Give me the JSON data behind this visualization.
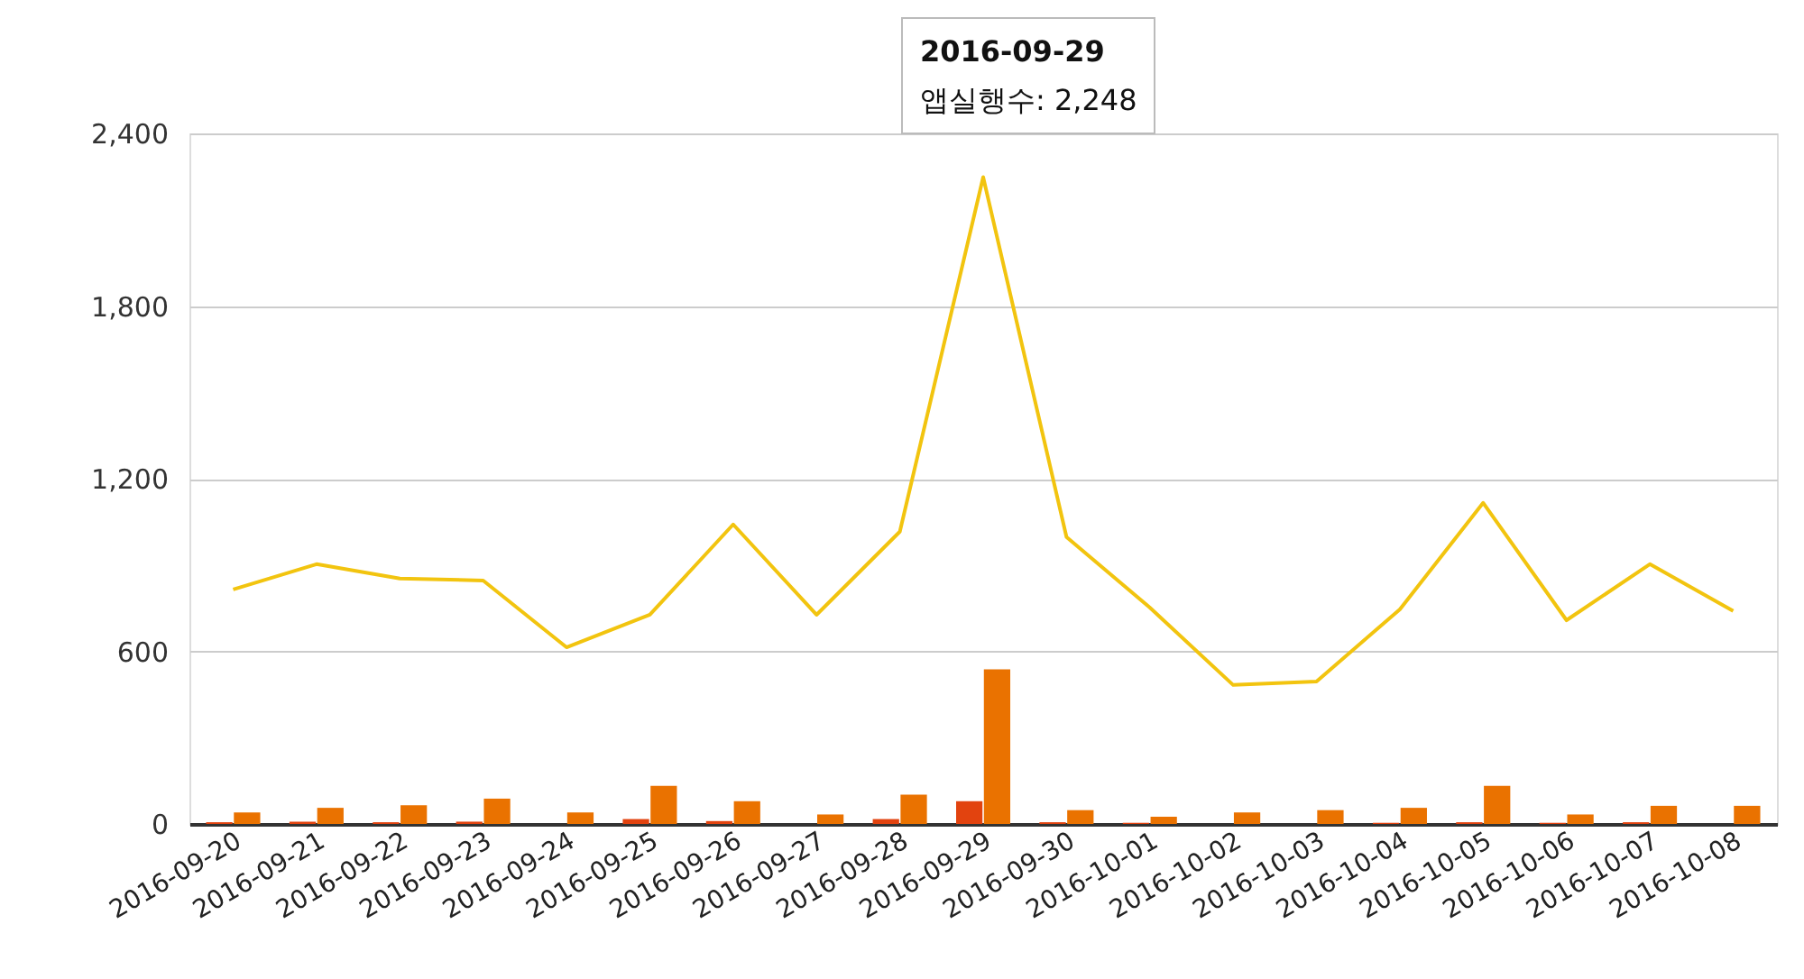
{
  "chart_data": {
    "type": "bar",
    "categories": [
      "2016-09-20",
      "2016-09-21",
      "2016-09-22",
      "2016-09-23",
      "2016-09-24",
      "2016-09-25",
      "2016-09-26",
      "2016-09-27",
      "2016-09-28",
      "2016-09-29",
      "2016-09-30",
      "2016-10-01",
      "2016-10-02",
      "2016-10-03",
      "2016-10-04",
      "2016-10-05",
      "2016-10-06",
      "2016-10-07",
      "2016-10-08"
    ],
    "series": [
      {
        "color": "#e2430f",
        "values": [
          6,
          8,
          6,
          8,
          0,
          17,
          10,
          0,
          17,
          79,
          6,
          4,
          0,
          0,
          4,
          6,
          4,
          6,
          0
        ]
      },
      {
        "color": "#ea7200",
        "values": [
          40,
          56,
          65,
          88,
          40,
          132,
          79,
          33,
          102,
          537,
          48,
          25,
          40,
          48,
          56,
          132,
          33,
          63,
          63
        ]
      },
      {
        "type": "line",
        "color": "#f2c40f",
        "values": [
          815,
          903,
          853,
          846,
          614,
          727,
          1041,
          727,
          1016,
          2248,
          997,
          752,
          483,
          495,
          746,
          1116,
          708,
          903,
          740
        ]
      }
    ],
    "ylim": [
      0,
      2400
    ],
    "yticks": [
      0,
      600,
      {
        "value": 1200,
        "label": "1,200"
      },
      {
        "value": 1800,
        "label": "1,800"
      },
      {
        "value": 2400,
        "label": "2,400"
      }
    ],
    "grid": "y",
    "annotations": [
      "2016-09-29",
      "앱실행수: 2,248"
    ]
  }
}
